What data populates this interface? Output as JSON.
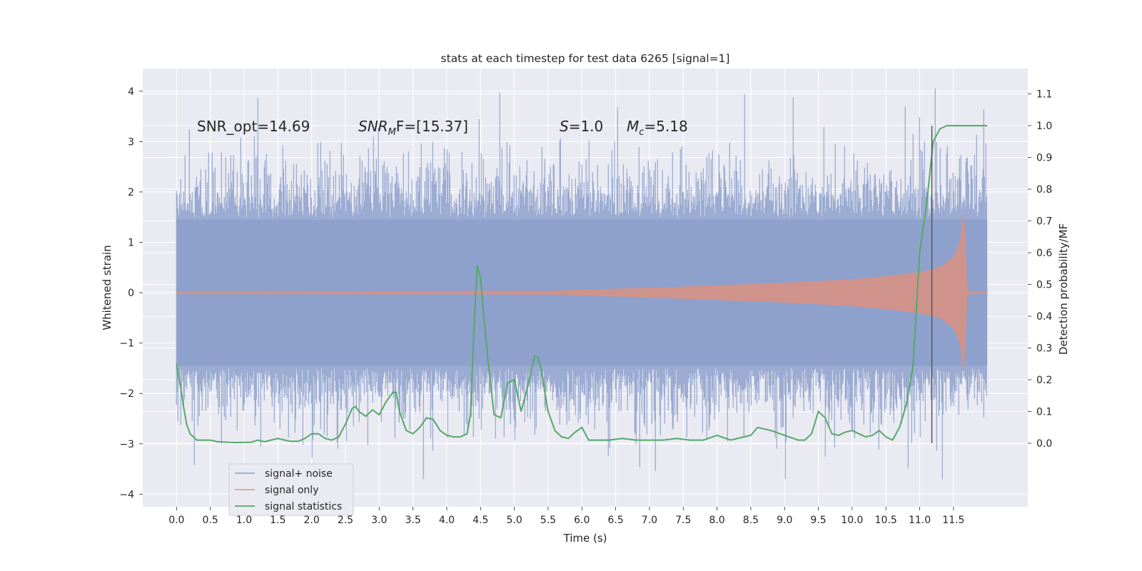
{
  "chart_data": {
    "type": "line",
    "title": "stats at each timestep for test data 6265 [signal=1]",
    "xlabel": "Time (s)",
    "ylabel_left": "Whitened strain",
    "ylabel_right": "Detection probability/MF",
    "xlim": [
      -0.5,
      12.6
    ],
    "ylim_left": [
      -4.25,
      4.45
    ],
    "ylim_right": [
      -0.2,
      1.18
    ],
    "x_ticks": [
      "0.0",
      "0.5",
      "1.0",
      "1.5",
      "2.0",
      "2.5",
      "3.0",
      "3.5",
      "4.0",
      "4.5",
      "5.0",
      "5.5",
      "6.0",
      "6.5",
      "7.0",
      "7.5",
      "8.0",
      "8.5",
      "9.0",
      "9.5",
      "10.0",
      "10.5",
      "11.0",
      "11.5"
    ],
    "y_left_ticks": [
      4,
      3,
      2,
      1,
      0,
      -1,
      -2,
      -3,
      -4
    ],
    "y_left_tick_labels": [
      "4",
      "3",
      "2",
      "1",
      "0",
      "−1",
      "−2",
      "−3",
      "−4"
    ],
    "y_right_ticks": [
      "1.1",
      "1.0",
      "0.9",
      "0.8",
      "0.7",
      "0.6",
      "0.5",
      "0.4",
      "0.3",
      "0.2",
      "0.1",
      "0.0"
    ],
    "grid": true,
    "legend_position": "lower-left",
    "annotations": {
      "snr_opt": "SNR_opt=14.69",
      "snr_mf_sym": "SNR",
      "snr_mf_sub": "M",
      "snr_mf_tail": "F=[15.37]",
      "s_sym": "S",
      "s_val": "=1.0",
      "mc_sym": "M",
      "mc_sub": "c",
      "mc_val": "=5.18"
    },
    "vline_x": 11.18,
    "series": [
      {
        "name": "signal+ noise",
        "axis": "left",
        "color": "#8da0cb",
        "envelope": "whitened noise, |amplitude| ≈ 1.5–2.5 typical, peaks to ≈4.1, x from 0.0 to 12.0"
      },
      {
        "name": "signal only",
        "axis": "left",
        "color": "#e58f77",
        "chirp_envelope": {
          "x": [
            0.0,
            5.5,
            7.0,
            8.0,
            9.0,
            10.0,
            10.5,
            11.0,
            11.3,
            11.5,
            11.6,
            11.65,
            11.68,
            11.7,
            11.75,
            12.0
          ],
          "y": [
            0.02,
            0.03,
            0.09,
            0.14,
            0.19,
            0.26,
            0.32,
            0.4,
            0.5,
            0.7,
            1.0,
            1.55,
            0.8,
            0.05,
            0.02,
            0.02
          ]
        }
      },
      {
        "name": "signal statistics",
        "axis": "right",
        "color": "#55a868",
        "x": [
          0.0,
          0.05,
          0.1,
          0.15,
          0.2,
          0.3,
          0.4,
          0.5,
          0.6,
          0.7,
          0.8,
          0.9,
          1.0,
          1.1,
          1.2,
          1.3,
          1.4,
          1.5,
          1.6,
          1.7,
          1.8,
          1.9,
          2.0,
          2.1,
          2.2,
          2.3,
          2.4,
          2.5,
          2.6,
          2.65,
          2.7,
          2.8,
          2.9,
          3.0,
          3.1,
          3.2,
          3.25,
          3.3,
          3.4,
          3.5,
          3.6,
          3.7,
          3.8,
          3.9,
          4.0,
          4.1,
          4.2,
          4.3,
          4.35,
          4.4,
          4.45,
          4.5,
          4.6,
          4.7,
          4.8,
          4.9,
          5.0,
          5.1,
          5.2,
          5.3,
          5.35,
          5.4,
          5.5,
          5.6,
          5.7,
          5.8,
          5.9,
          6.0,
          6.1,
          6.2,
          6.4,
          6.6,
          6.8,
          7.0,
          7.2,
          7.4,
          7.6,
          7.8,
          8.0,
          8.2,
          8.4,
          8.5,
          8.6,
          8.8,
          9.0,
          9.2,
          9.3,
          9.4,
          9.5,
          9.6,
          9.7,
          9.8,
          9.9,
          10.0,
          10.1,
          10.2,
          10.3,
          10.4,
          10.5,
          10.6,
          10.7,
          10.8,
          10.9,
          11.0,
          11.1,
          11.2,
          11.3,
          11.4,
          11.5,
          11.6,
          11.7,
          11.8,
          11.9,
          12.0
        ],
        "y": [
          0.25,
          0.19,
          0.12,
          0.06,
          0.03,
          0.01,
          0.01,
          0.01,
          0.005,
          0.004,
          0.003,
          0.002,
          0.003,
          0.003,
          0.01,
          0.005,
          0.01,
          0.015,
          0.01,
          0.006,
          0.006,
          0.015,
          0.03,
          0.03,
          0.015,
          0.01,
          0.02,
          0.06,
          0.11,
          0.115,
          0.1,
          0.085,
          0.105,
          0.09,
          0.13,
          0.16,
          0.16,
          0.1,
          0.04,
          0.03,
          0.05,
          0.08,
          0.075,
          0.04,
          0.025,
          0.02,
          0.02,
          0.03,
          0.09,
          0.35,
          0.56,
          0.52,
          0.28,
          0.09,
          0.08,
          0.19,
          0.2,
          0.1,
          0.18,
          0.275,
          0.27,
          0.23,
          0.1,
          0.04,
          0.02,
          0.015,
          0.035,
          0.05,
          0.01,
          0.01,
          0.01,
          0.015,
          0.01,
          0.01,
          0.01,
          0.015,
          0.01,
          0.01,
          0.025,
          0.01,
          0.02,
          0.025,
          0.05,
          0.04,
          0.025,
          0.01,
          0.01,
          0.03,
          0.1,
          0.08,
          0.03,
          0.025,
          0.035,
          0.04,
          0.03,
          0.02,
          0.025,
          0.04,
          0.02,
          0.01,
          0.05,
          0.12,
          0.24,
          0.6,
          0.75,
          0.95,
          0.99,
          1.0,
          1.0,
          1.0,
          1.0,
          1.0,
          1.0,
          1.0
        ]
      }
    ]
  }
}
